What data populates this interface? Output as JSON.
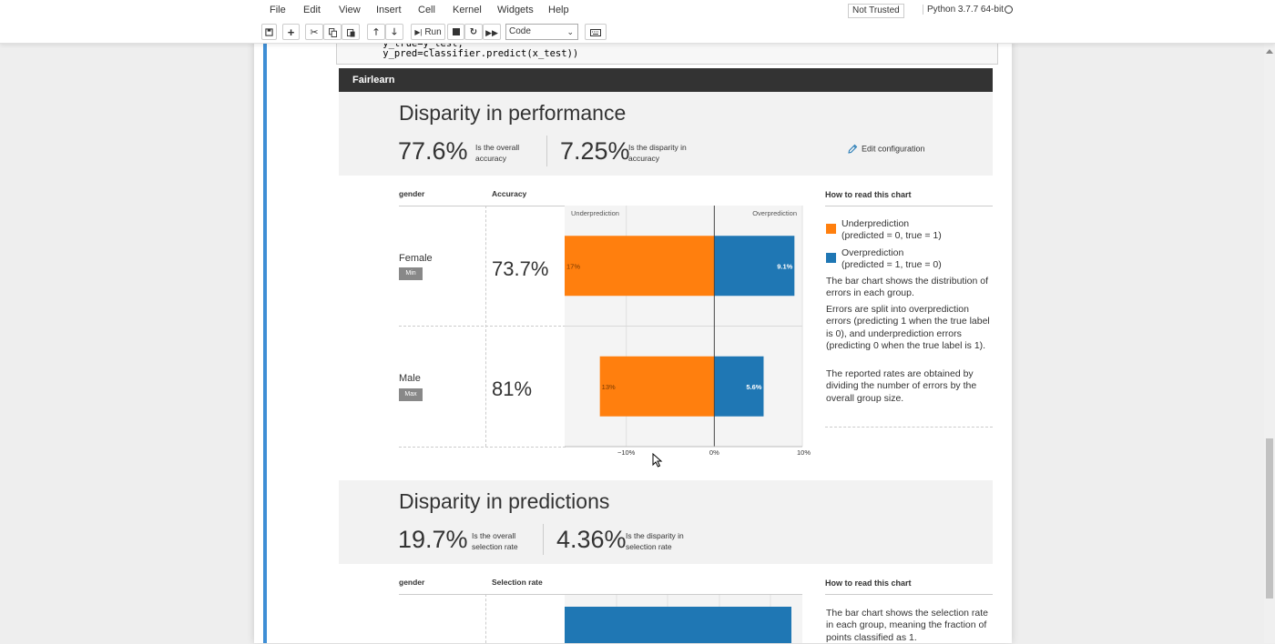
{
  "menu": [
    "File",
    "Edit",
    "View",
    "Insert",
    "Cell",
    "Kernel",
    "Widgets",
    "Help"
  ],
  "trust_label": "Not Trusted",
  "kernel_label": "Python 3.7.7 64-bit",
  "toolbar": {
    "run_label": "Run",
    "cell_type": "Code"
  },
  "code": {
    "line1": "    y_true=y_test,",
    "line2": "    y_pred=classifier.predict(x_test))"
  },
  "fairlearn_title": "Fairlearn",
  "performance": {
    "title": "Disparity in performance",
    "overall_value": "77.6%",
    "overall_label": "Is the overall accuracy",
    "disparity_value": "7.25%",
    "disparity_label": "Is the disparity in accuracy",
    "edit_label": "Edit configuration",
    "group_header": "gender",
    "metric_header": "Accuracy",
    "under_label": "Underprediction",
    "over_label": "Overprediction"
  },
  "chart_data": {
    "type": "bar",
    "categories": [
      "Female",
      "Male"
    ],
    "series": [
      {
        "name": "Underprediction",
        "values": [
          -17,
          -13
        ]
      },
      {
        "name": "Overprediction",
        "values": [
          9.1,
          5.6
        ]
      }
    ],
    "value_labels": {
      "under": [
        "17%",
        "13%"
      ],
      "over": [
        "9.1%",
        "5.6%"
      ]
    },
    "xlim": [
      -17,
      10
    ],
    "xticks": [
      -10,
      0,
      10
    ],
    "xtick_labels": [
      "−10%",
      "0%",
      "10%"
    ]
  },
  "groups": [
    {
      "name": "Female",
      "badge": "Min",
      "value": "73.7%"
    },
    {
      "name": "Male",
      "badge": "Max",
      "value": "81%"
    }
  ],
  "howto": {
    "title": "How to read this chart",
    "legend": [
      {
        "line1": "Underprediction",
        "line2": "(predicted = 0, true = 1)",
        "color": "#ff7f0e"
      },
      {
        "line1": "Overprediction",
        "line2": "(predicted = 1, true = 0)",
        "color": "#1f77b4"
      }
    ],
    "p1": "The bar chart shows the distribution of errors in each group.",
    "p2": "Errors are split into overprediction errors (predicting 1 when the true label is 0), and underprediction errors (predicting 0 when the true label is 1).",
    "p3": "The reported rates are obtained by dividing the number of errors by the overall group size."
  },
  "predictions": {
    "title": "Disparity in predictions",
    "overall_value": "19.7%",
    "overall_label": "Is the overall selection rate",
    "disparity_value": "4.36%",
    "disparity_label": "Is the disparity in selection rate",
    "group_header": "gender",
    "metric_header": "Selection rate",
    "howto_title": "How to read this chart",
    "howto_text": "The bar chart shows the selection rate in each group, meaning the fraction of points classified as 1."
  }
}
